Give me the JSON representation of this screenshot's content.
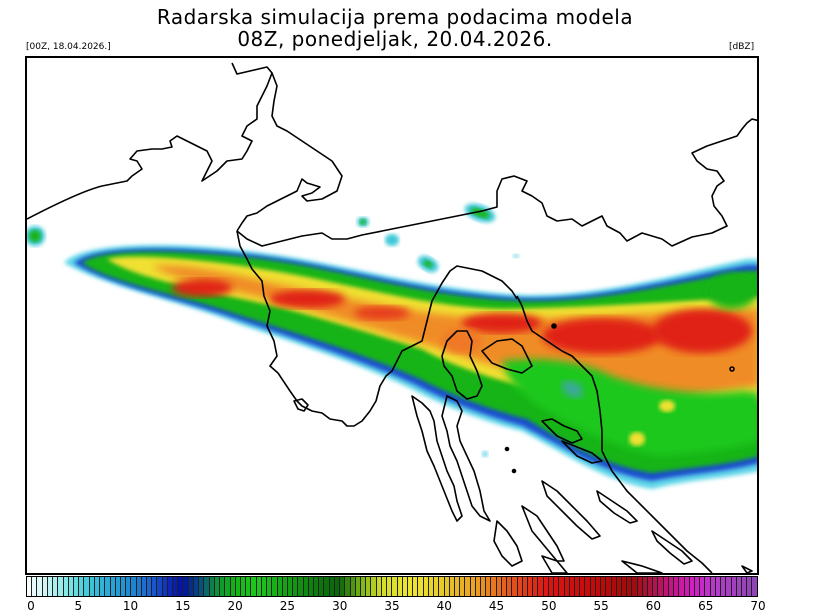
{
  "header": {
    "title_line1": "Radarska simulacija prema podacima modela",
    "title_line2": "08Z, ponedjeljak, 20.04.2026.",
    "model_init": "[00Z, 18.04.2026.]",
    "unit": "[dBZ]"
  },
  "map": {
    "region": "Northern Adriatic / Croatia",
    "features": [
      "coastlines",
      "country-borders",
      "islands",
      "simulated-radar-reflectivity"
    ]
  },
  "colorbar": {
    "min": 0,
    "max": 70,
    "tick_labels": [
      "0",
      "5",
      "10",
      "15",
      "20",
      "25",
      "30",
      "35",
      "40",
      "45",
      "50",
      "55",
      "60",
      "65",
      "70"
    ],
    "stops": [
      {
        "v": 0,
        "c": "#ffffff"
      },
      {
        "v": 2,
        "c": "#c8f4f4"
      },
      {
        "v": 4,
        "c": "#7fe6e6"
      },
      {
        "v": 6,
        "c": "#3cc8d8"
      },
      {
        "v": 8,
        "c": "#28a8d8"
      },
      {
        "v": 10,
        "c": "#1e88d0"
      },
      {
        "v": 12,
        "c": "#1a5ed0"
      },
      {
        "v": 14,
        "c": "#0a20b8"
      },
      {
        "v": 15,
        "c": "#0012a0"
      },
      {
        "v": 17,
        "c": "#0a5a78"
      },
      {
        "v": 18,
        "c": "#0a8c3c"
      },
      {
        "v": 20,
        "c": "#14b414"
      },
      {
        "v": 22,
        "c": "#1ec81e"
      },
      {
        "v": 25,
        "c": "#12a012"
      },
      {
        "v": 28,
        "c": "#0c780c"
      },
      {
        "v": 30,
        "c": "#0a640a"
      },
      {
        "v": 32,
        "c": "#78b414"
      },
      {
        "v": 34,
        "c": "#d2dc28"
      },
      {
        "v": 37,
        "c": "#f0e632"
      },
      {
        "v": 40,
        "c": "#e6c828"
      },
      {
        "v": 43,
        "c": "#eba022"
      },
      {
        "v": 46,
        "c": "#e65a1e"
      },
      {
        "v": 50,
        "c": "#dc1414"
      },
      {
        "v": 54,
        "c": "#c80a0a"
      },
      {
        "v": 58,
        "c": "#a00a0a"
      },
      {
        "v": 60,
        "c": "#b01446"
      },
      {
        "v": 62,
        "c": "#c8148c"
      },
      {
        "v": 64,
        "c": "#d21ec8"
      },
      {
        "v": 66,
        "c": "#b43cc8"
      },
      {
        "v": 70,
        "c": "#8c46b4"
      }
    ],
    "cells": 140
  }
}
